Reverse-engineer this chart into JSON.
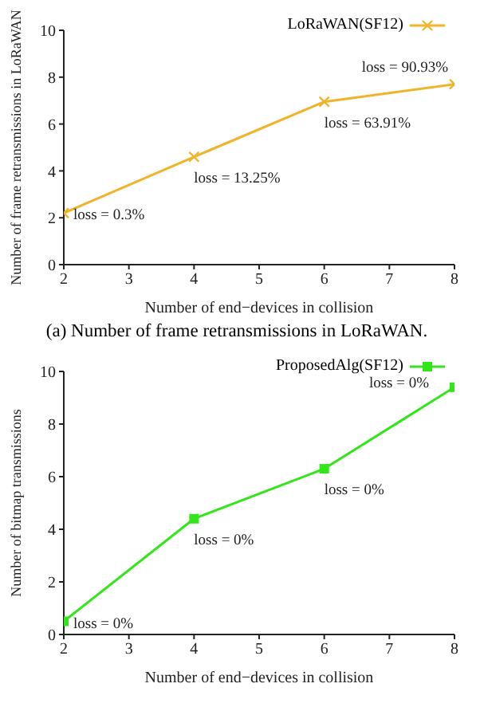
{
  "chart_data": [
    {
      "type": "line",
      "xlabel": "Number of end−devices in collision",
      "ylabel": "Number of frame retransmissions in LoRaWAN",
      "x": [
        2,
        4,
        6,
        8
      ],
      "series": [
        {
          "name": "LoRaWAN(SF12)",
          "color": "#f0b429",
          "values": [
            2.2,
            4.6,
            6.95,
            7.7
          ]
        }
      ],
      "xlim": [
        2,
        8
      ],
      "xticks": [
        2,
        3,
        4,
        5,
        6,
        7,
        8
      ],
      "ylim": [
        0,
        10
      ],
      "yticks": [
        0,
        2,
        4,
        6,
        8,
        10
      ],
      "legend": "top right",
      "marker": "cross",
      "line_style": "solid",
      "annotations": [
        {
          "text": "loss = 0.3%",
          "x": 2,
          "y": 2.2
        },
        {
          "text": "loss = 13.25%",
          "x": 4,
          "y": 4.6
        },
        {
          "text": "loss = 63.91%",
          "x": 6,
          "y": 6.95
        },
        {
          "text": "loss = 90.93%",
          "x": 8,
          "y": 7.7
        },
        "(a) Number of frame retransmissions in LoRaWAN."
      ]
    },
    {
      "type": "line",
      "xlabel": "Number of end−devices in collision",
      "ylabel": "Number of bitmap transmissions",
      "x": [
        2,
        4,
        6,
        8
      ],
      "series": [
        {
          "name": "ProposedAlg(SF12)",
          "color": "#33e619",
          "values": [
            0.5,
            4.4,
            6.3,
            9.4
          ]
        }
      ],
      "xlim": [
        2,
        8
      ],
      "xticks": [
        2,
        3,
        4,
        5,
        6,
        7,
        8
      ],
      "ylim": [
        0,
        10
      ],
      "yticks": [
        0,
        2,
        4,
        6,
        8,
        10
      ],
      "legend": "top right",
      "marker": "square",
      "line_style": "solid",
      "annotations": [
        {
          "text": "loss = 0%",
          "x": 2,
          "y": 0.5
        },
        {
          "text": "loss = 0%",
          "x": 4,
          "y": 4.4
        },
        {
          "text": "loss = 0%",
          "x": 6,
          "y": 6.3
        },
        {
          "text": "loss = 0%",
          "x": 8,
          "y": 9.4
        }
      ]
    }
  ]
}
